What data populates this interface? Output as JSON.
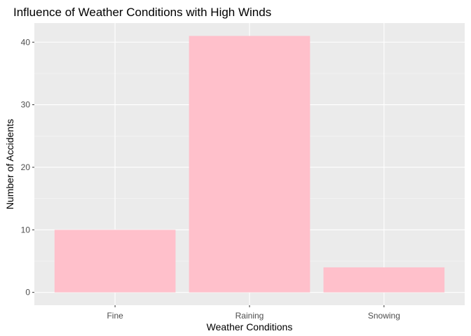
{
  "chart_data": {
    "type": "bar",
    "title": "Influence of Weather Conditions with High Winds",
    "xlabel": "Weather Conditions",
    "ylabel": "Number of Accidents",
    "categories": [
      "Fine",
      "Raining",
      "Snowing"
    ],
    "values": [
      10,
      41,
      4
    ],
    "ylim": [
      -2.05,
      43.05
    ],
    "yticks": [
      0,
      10,
      20,
      30,
      40
    ],
    "grid": true,
    "legend": "none",
    "colors": {
      "bar": "#ffc0cb",
      "panel": "#ebebeb",
      "grid_major": "#ffffff",
      "grid_minor": "#f5f5f5",
      "tick_text": "#4d4d4d",
      "tick_mark": "#333333"
    }
  }
}
